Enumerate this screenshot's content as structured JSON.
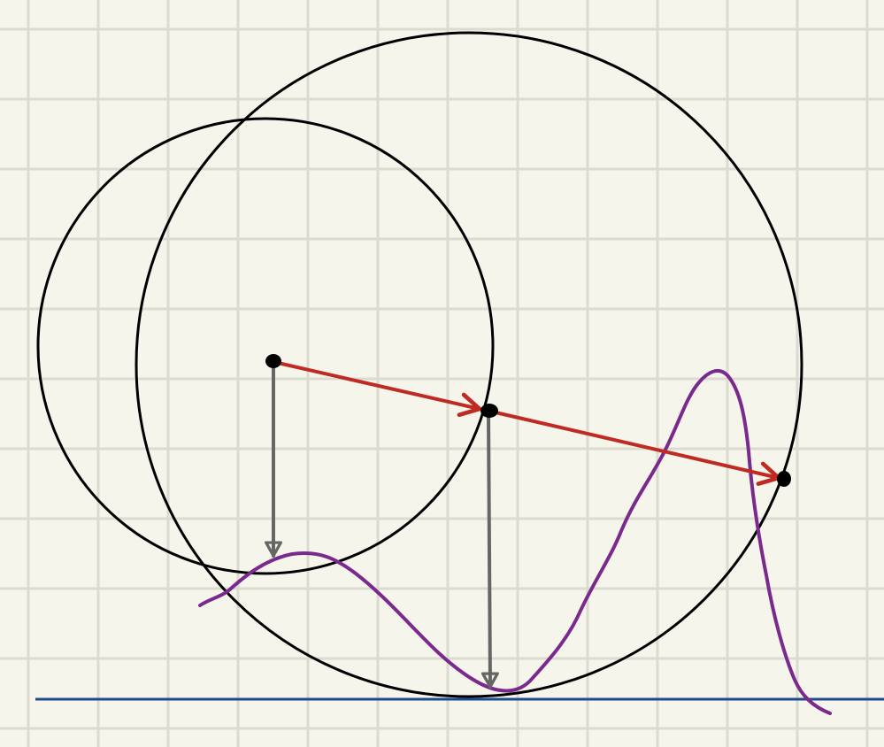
{
  "colors": {
    "paper": "#f6f5ec",
    "grid": "#dcdbd0",
    "circle": "#000000",
    "step_arrow": "#bf2a22",
    "drop_arrow": "#666666",
    "curve": "#7a2a8c",
    "baseline": "#1f4a8c",
    "point": "#000000"
  },
  "icons": {
    "step_arrowhead": "chevron-arrowhead",
    "drop_arrowhead": "triangle-arrowhead",
    "point": "filled-dot"
  }
}
